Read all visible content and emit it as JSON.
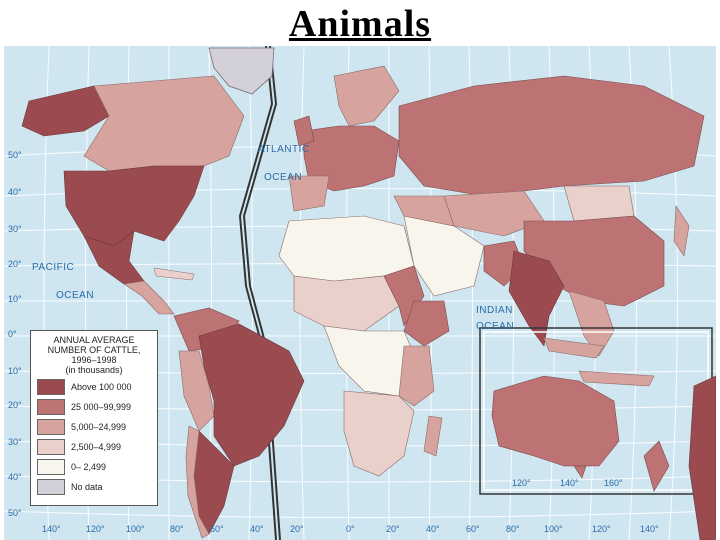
{
  "title": "Animals",
  "legend": {
    "title_line1": "ANNUAL AVERAGE",
    "title_line2": "NUMBER OF CATTLE,",
    "title_line3": "1996–1998",
    "title_line4": "(in thousands)",
    "items": [
      {
        "label": "Above 100 000",
        "color": "#9b4a4f"
      },
      {
        "label": "25 000–99,999",
        "color": "#bd7374"
      },
      {
        "label": "5,000–24,999",
        "color": "#d6a39f"
      },
      {
        "label": "2,500–4,999",
        "color": "#ead0cb"
      },
      {
        "label": "0– 2,499",
        "color": "#f8f5ed"
      },
      {
        "label": "No data",
        "color": "#d4d0da"
      }
    ]
  },
  "ocean_labels": {
    "atlantic_1": "ATLANTIC",
    "atlantic_2": "OCEAN",
    "pacific_1": "PACIFIC",
    "pacific_2": "OCEAN",
    "indian_1": "INDIAN",
    "indian_2": "OCEAN"
  },
  "lat_ticks": [
    "50°",
    "40°",
    "30°",
    "20°",
    "10°",
    "0°",
    "10°",
    "20°",
    "30°",
    "40°",
    "50°"
  ],
  "lon_ticks_west": [
    "140°",
    "120°",
    "100°",
    "80°",
    "60°",
    "40°",
    "20°"
  ],
  "lon_ticks_east": [
    "0°",
    "20°",
    "40°",
    "60°",
    "80°",
    "100°",
    "120°",
    "140°"
  ],
  "inset_ticks": [
    "120°",
    "140°",
    "160°"
  ],
  "colors": {
    "ocean": "#cfe6f0",
    "grid": "#ffffff",
    "border": "#3a3a3a"
  }
}
